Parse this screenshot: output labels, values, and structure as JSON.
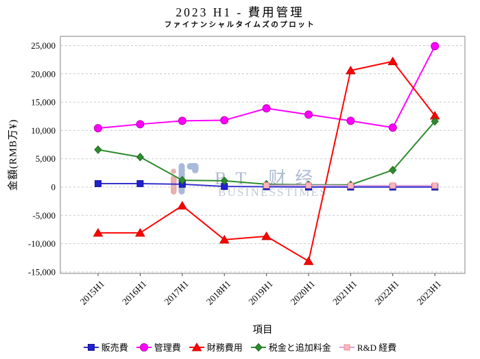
{
  "title": "2023 H1 - 費用管理",
  "subtitle": "ファイナンシャルタイムズのプロット",
  "watermark": {
    "brand": "BT 财经",
    "subtext": "BUSINESSTIMES"
  },
  "chart_data": {
    "type": "line",
    "title": "2023 H1 - 費用管理",
    "subtitle": "ファイナンシャルタイムズのプロット",
    "xlabel": "項目",
    "ylabel": "金額(RMB万¥)",
    "categories": [
      "2015H1",
      "2016H1",
      "2017H1",
      "2018H1",
      "2019H1",
      "2020H1",
      "2021H1",
      "2022H1",
      "2023H1"
    ],
    "ylim": [
      -15000,
      25000
    ],
    "ytick_step": 5000,
    "grid": "horizontal-dashed",
    "legend_position": "bottom",
    "series": [
      {
        "name": "販売費",
        "marker": "square",
        "line_color": "#3333cc",
        "marker_color": "#2222cc",
        "edge_color": "#111199",
        "values": [
          600,
          600,
          500,
          100,
          50,
          0,
          0,
          0,
          0
        ]
      },
      {
        "name": "管理費",
        "marker": "circle",
        "line_color": "#ff00ff",
        "marker_color": "#ff00ff",
        "edge_color": "#b300b3",
        "values": [
          10400,
          11100,
          11700,
          11800,
          13900,
          12800,
          11700,
          10500,
          24900
        ]
      },
      {
        "name": "財務費用",
        "marker": "triangle",
        "line_color": "#ff0000",
        "marker_color": "#ff0000",
        "edge_color": "#cc0000",
        "values": [
          -8100,
          -8100,
          -3300,
          -9300,
          -8700,
          -13100,
          20600,
          22200,
          12600
        ]
      },
      {
        "name": "税金と追加料金",
        "marker": "diamond",
        "line_color": "#2e8b2e",
        "marker_color": "#2e8b2e",
        "edge_color": "#1e6b1e",
        "values": [
          6600,
          5300,
          1200,
          1100,
          500,
          400,
          400,
          3000,
          11600
        ]
      },
      {
        "name": "R&D 経費",
        "marker": "square8",
        "line_color": "#dda0dd",
        "marker_color": "#ffb6c1",
        "edge_color": "#e89090",
        "values": [
          null,
          null,
          null,
          null,
          300,
          300,
          250,
          250,
          250
        ]
      }
    ]
  }
}
